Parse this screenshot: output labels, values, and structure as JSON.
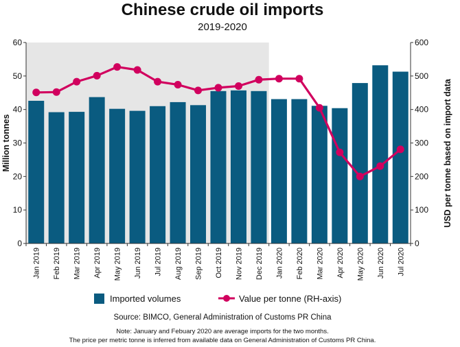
{
  "chart_data": {
    "type": "bar",
    "title": "Chinese crude oil imports",
    "subtitle": "2019-2020",
    "categories": [
      "Jan 2019",
      "Feb 2019",
      "Mar 2019",
      "Apr 2019",
      "May 2019",
      "Jun 2019",
      "Jul 2019",
      "Aug 2019",
      "Sep 2019",
      "Oct 2019",
      "Nov 2019",
      "Dec 2019",
      "Jan 2020",
      "Feb 2020",
      "Mar 2020",
      "Apr 2020",
      "May 2020",
      "Jun 2020",
      "Jul 2020"
    ],
    "series": [
      {
        "name": "Imported volumes",
        "type": "bar",
        "axis": "left",
        "values": [
          42.6,
          39.2,
          39.3,
          43.7,
          40.2,
          39.6,
          41.0,
          42.2,
          41.3,
          45.5,
          45.7,
          45.5,
          43.1,
          43.1,
          41.1,
          40.4,
          47.9,
          53.2,
          51.3
        ]
      },
      {
        "name": "Value per tonne (RH-axis)",
        "type": "line",
        "axis": "right",
        "values": [
          451,
          452,
          483,
          501,
          527,
          518,
          483,
          474,
          457,
          465,
          470,
          489,
          492,
          492,
          405,
          272,
          200,
          231,
          281
        ]
      }
    ],
    "ylabel": "Million tonnes",
    "ylim": [
      0,
      60
    ],
    "yticks": [
      0,
      10,
      20,
      30,
      40,
      50,
      60
    ],
    "y2label": "USD per tonne based on import data",
    "y2lim": [
      0,
      600
    ],
    "y2ticks": [
      0,
      100,
      200,
      300,
      400,
      500,
      600
    ],
    "shaded_categories": [
      "Jan 2019",
      "Dec 2019"
    ],
    "grid": false,
    "legend_position": "bottom",
    "source": "Source: BIMCO, General Administration of Customs PR China",
    "notes": [
      "Note: January and Febuary 2020 are average imports for the two months.",
      "The price per metric tonne is inferred from available data on General Administration of Customs PR China."
    ],
    "colors": {
      "bars": "#0a5b80",
      "line": "#d1005e",
      "shade": "#e6e6e6"
    }
  }
}
